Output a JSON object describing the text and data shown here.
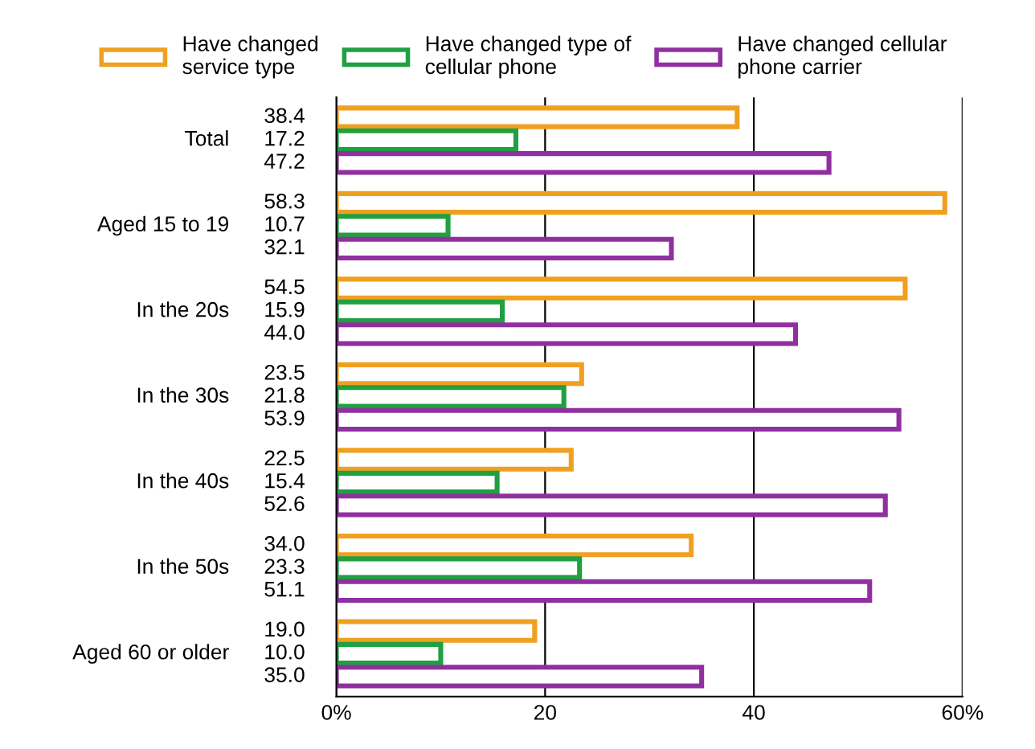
{
  "chart_data": {
    "type": "bar",
    "orientation": "horizontal",
    "categories": [
      "Total",
      "Aged 15 to 19",
      "In the 20s",
      "In the 30s",
      "In the 40s",
      "In the 50s",
      "Aged 60 or older"
    ],
    "series": [
      {
        "name": "Have changed\nservice type",
        "color": "#f0a020",
        "values": [
          38.4,
          58.3,
          54.5,
          23.5,
          22.5,
          34.0,
          19.0
        ],
        "value_labels": [
          "38.4",
          "58.3",
          "54.5",
          "23.5",
          "22.5",
          "34.0",
          "19.0"
        ]
      },
      {
        "name": "Have changed type of\ncellular phone",
        "color": "#20a040",
        "values": [
          17.2,
          10.7,
          15.9,
          21.8,
          15.4,
          23.3,
          10.0
        ],
        "value_labels": [
          "17.2",
          "10.7",
          "15.9",
          "21.8",
          "15.4",
          "23.3",
          "10.0"
        ]
      },
      {
        "name": "Have changed cellular\nphone carrier",
        "color": "#9030a0",
        "values": [
          47.2,
          32.1,
          44.0,
          53.9,
          52.6,
          51.1,
          35.0
        ],
        "value_labels": [
          "47.2",
          "32.1",
          "44.0",
          "53.9",
          "52.6",
          "51.1",
          "35.0"
        ]
      }
    ],
    "xlim": [
      0,
      60
    ],
    "xticks": [
      {
        "value": 0,
        "label": "0%"
      },
      20,
      40,
      {
        "value": 60,
        "label": "60%"
      }
    ],
    "grid": "x",
    "legend": "top"
  }
}
